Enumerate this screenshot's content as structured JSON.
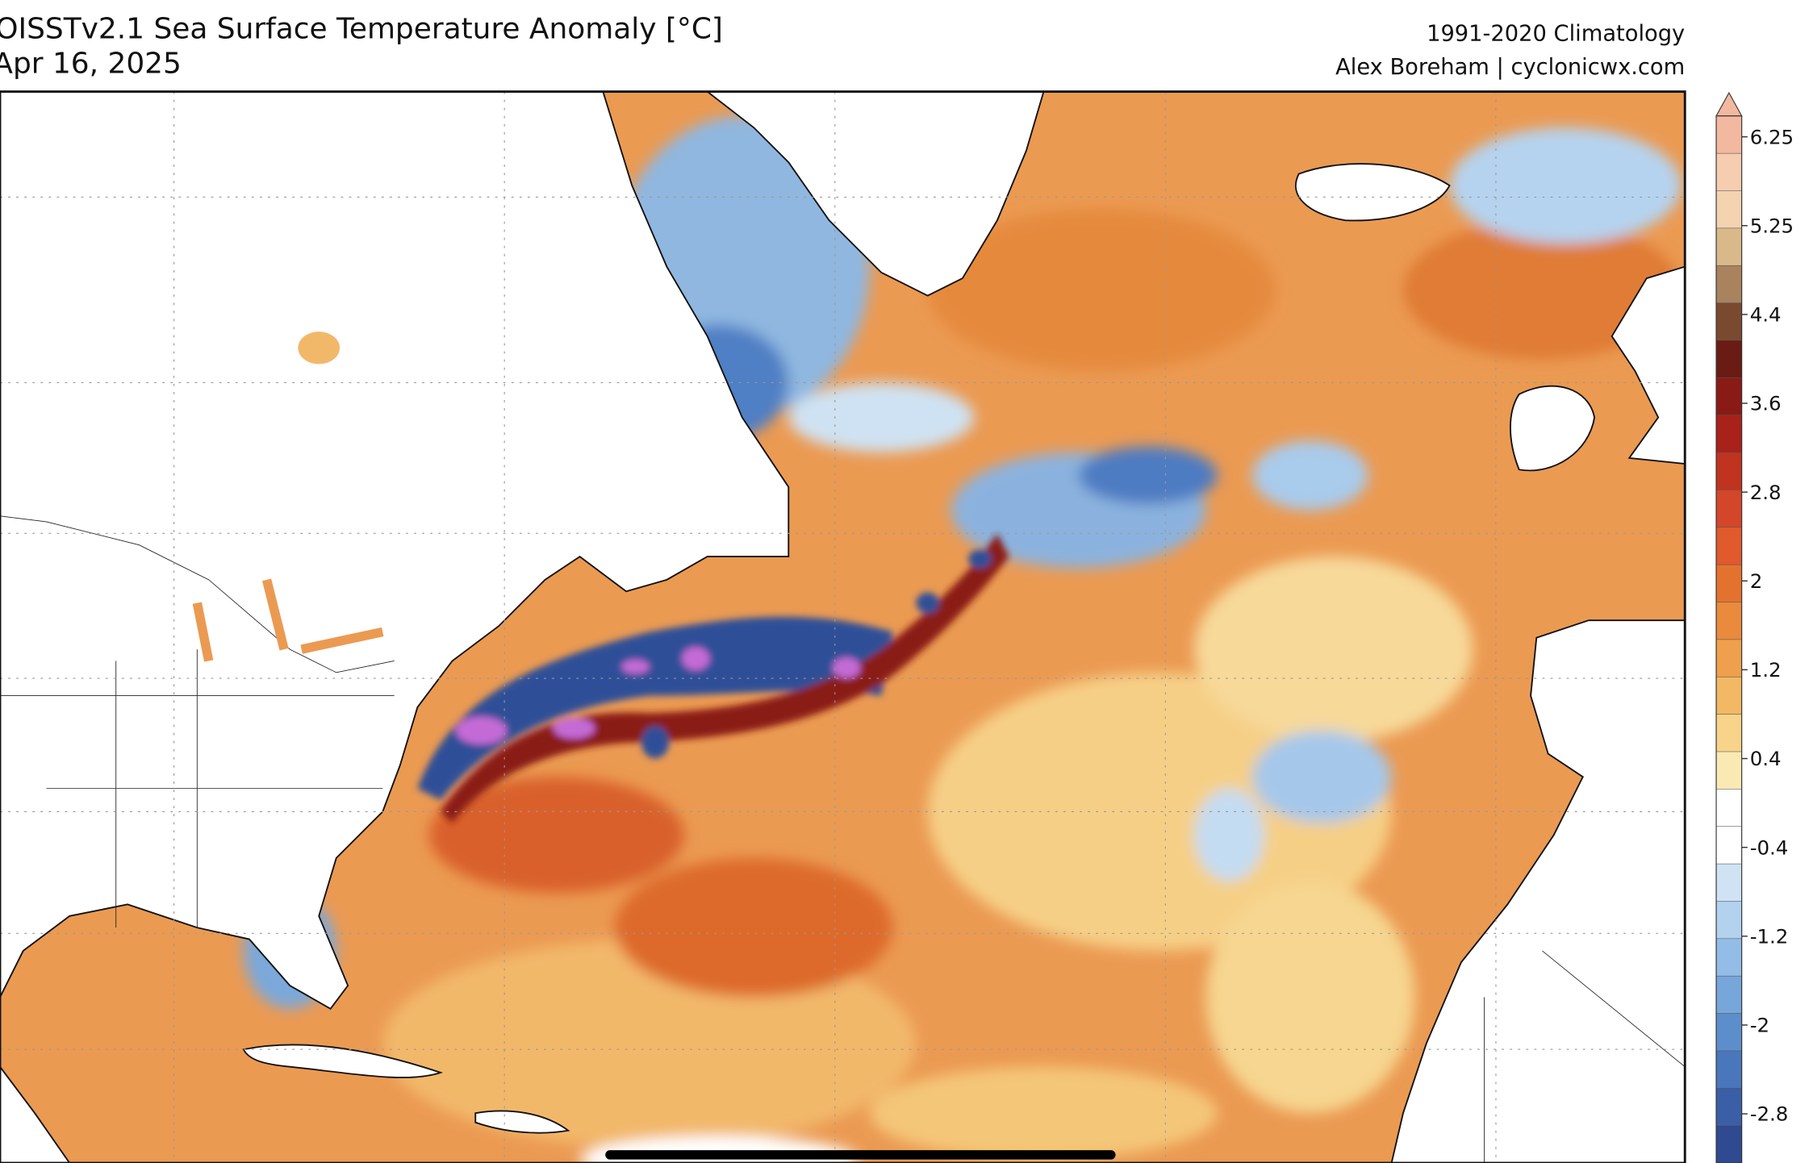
{
  "header": {
    "title": "OISSTv2.1 Sea Surface Temperature Anomaly [°C]",
    "date": "Apr 16, 2025",
    "climatology": "1991-2020 Climatology",
    "credit": "Alex Boreham | cyclonicwx.com"
  },
  "colorbar": {
    "ticks": [
      6.25,
      5.25,
      4.4,
      3.6,
      2.8,
      2,
      1.2,
      0.4,
      -0.4,
      -1.2,
      -2,
      -2.8
    ],
    "colors": [
      "#f2b9a0",
      "#f6cdb0",
      "#f3d3b0",
      "#d9b98a",
      "#a8835e",
      "#7a4a30",
      "#6a1c14",
      "#8a1a16",
      "#a8211a",
      "#c0331f",
      "#d4462a",
      "#e05a2d",
      "#e4722f",
      "#e98a3c",
      "#eea04c",
      "#f2b864",
      "#f7d489",
      "#fbe9b4",
      "#ffffff",
      "#ffffff",
      "#cfe3f4",
      "#b2d2ee",
      "#93bde6",
      "#77a6da",
      "#5d8ecc",
      "#4a76bb",
      "#3b5fa7",
      "#2f4a90"
    ]
  }
}
